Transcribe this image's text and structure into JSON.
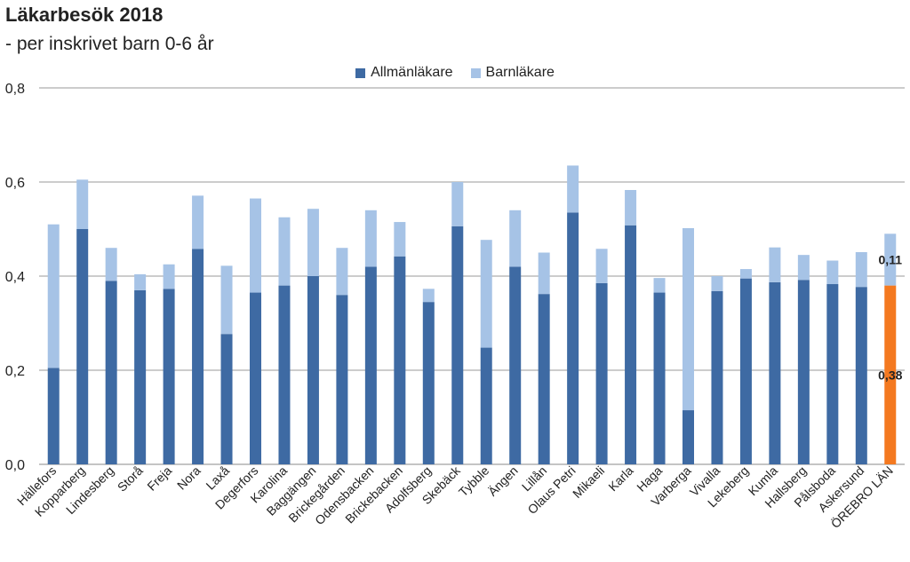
{
  "chart_data": {
    "type": "bar",
    "stacked": true,
    "title": "Läkarbesök 2018",
    "subtitle": "- per inskrivet barn 0-6 år",
    "xlabel": "",
    "ylabel": "",
    "ylim": [
      0,
      0.8
    ],
    "yticks": [
      "0,0",
      "0,2",
      "0,4",
      "0,6",
      "0,8"
    ],
    "grid": true,
    "legend_position": "top-center",
    "categories": [
      "Hällefors",
      "Kopparberg",
      "Lindesberg",
      "Storå",
      "Freja",
      "Nora",
      "Laxå",
      "Degerfors",
      "Karolina",
      "Baggängen",
      "Brickegården",
      "Odensbacken",
      "Brickebacken",
      "Adolfsberg",
      "Skebäck",
      "Tybble",
      "Ängen",
      "Lillån",
      "Olaus Petri",
      "Mikaeli",
      "Karla",
      "Haga",
      "Varberga",
      "Vivalla",
      "Lekeberg",
      "Kumla",
      "Hallsberg",
      "Pålsboda",
      "Askersund",
      "ÖREBRO LÄN"
    ],
    "series": [
      {
        "name": "Allmänläkare",
        "color": "#3e6aa3",
        "values": [
          0.205,
          0.5,
          0.39,
          0.37,
          0.373,
          0.458,
          0.277,
          0.365,
          0.38,
          0.4,
          0.36,
          0.42,
          0.442,
          0.345,
          0.506,
          0.248,
          0.42,
          0.362,
          0.535,
          0.385,
          0.508,
          0.365,
          0.115,
          0.368,
          0.395,
          0.387,
          0.392,
          0.383,
          0.377,
          0.38
        ]
      },
      {
        "name": "Barnläkare",
        "color": "#a6c3e6",
        "values": [
          0.305,
          0.105,
          0.07,
          0.034,
          0.052,
          0.113,
          0.145,
          0.2,
          0.145,
          0.143,
          0.1,
          0.12,
          0.073,
          0.028,
          0.094,
          0.229,
          0.12,
          0.088,
          0.1,
          0.073,
          0.075,
          0.031,
          0.387,
          0.032,
          0.02,
          0.074,
          0.053,
          0.05,
          0.074,
          0.11
        ]
      }
    ],
    "highlight": {
      "category": "ÖREBRO LÄN",
      "colors": [
        "#f47920",
        "#a6c3e6"
      ]
    },
    "data_labels": [
      {
        "category": "ÖREBRO LÄN",
        "series": "Allmänläkare",
        "text": "0,38"
      },
      {
        "category": "ÖREBRO LÄN",
        "series": "Barnläkare",
        "text": "0,11"
      }
    ]
  }
}
